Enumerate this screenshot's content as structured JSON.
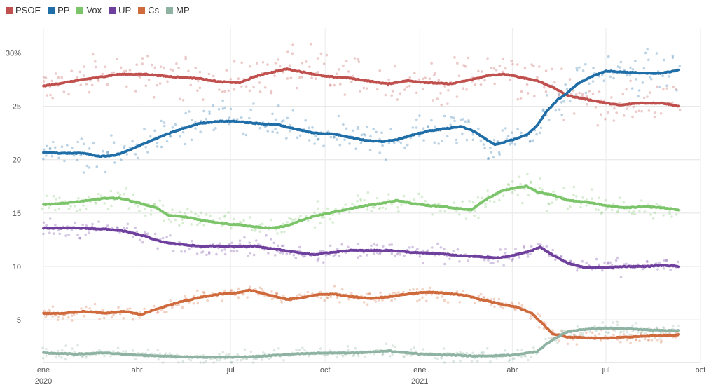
{
  "chart_data": {
    "type": "line",
    "title": "",
    "xlabel": "",
    "ylabel": "",
    "x_range": [
      "2020-01-01",
      "2021-10-01"
    ],
    "ylim": [
      1,
      32
    ],
    "grid": true,
    "legend_position": "top-left",
    "y_ticks": [
      {
        "value": 30,
        "label": "30%"
      },
      {
        "value": 25,
        "label": "25"
      },
      {
        "value": 20,
        "label": "20"
      },
      {
        "value": 15,
        "label": "15"
      },
      {
        "value": 10,
        "label": "10"
      },
      {
        "value": 5,
        "label": "5"
      }
    ],
    "x_ticks": [
      {
        "date": "2020-01-01",
        "label": "ene",
        "year": "2020"
      },
      {
        "date": "2020-04-01",
        "label": "abr",
        "year": ""
      },
      {
        "date": "2020-07-01",
        "label": "jul",
        "year": ""
      },
      {
        "date": "2020-10-01",
        "label": "oct",
        "year": ""
      },
      {
        "date": "2021-01-01",
        "label": "ene",
        "year": "2021"
      },
      {
        "date": "2021-04-01",
        "label": "abr",
        "year": ""
      },
      {
        "date": "2021-07-01",
        "label": "jul",
        "year": ""
      },
      {
        "date": "2021-10-01",
        "label": "oct",
        "year": ""
      }
    ],
    "series": [
      {
        "name": "PSOE",
        "color": "#c0504d",
        "points": [
          [
            "2020-01-01",
            26.9
          ],
          [
            "2020-01-20",
            27.2
          ],
          [
            "2020-02-15",
            27.6
          ],
          [
            "2020-03-15",
            28.0
          ],
          [
            "2020-04-10",
            28.0
          ],
          [
            "2020-05-01",
            27.8
          ],
          [
            "2020-06-01",
            27.6
          ],
          [
            "2020-06-20",
            27.3
          ],
          [
            "2020-07-10",
            27.2
          ],
          [
            "2020-07-25",
            27.8
          ],
          [
            "2020-08-15",
            28.3
          ],
          [
            "2020-08-25",
            28.5
          ],
          [
            "2020-09-15",
            28.1
          ],
          [
            "2020-10-01",
            27.8
          ],
          [
            "2020-10-20",
            27.7
          ],
          [
            "2020-11-10",
            27.4
          ],
          [
            "2020-12-01",
            27.1
          ],
          [
            "2020-12-20",
            27.4
          ],
          [
            "2021-01-10",
            27.2
          ],
          [
            "2021-02-01",
            27.1
          ],
          [
            "2021-02-20",
            27.5
          ],
          [
            "2021-03-10",
            27.9
          ],
          [
            "2021-03-25",
            28.0
          ],
          [
            "2021-04-10",
            27.7
          ],
          [
            "2021-04-25",
            27.4
          ],
          [
            "2021-05-10",
            26.8
          ],
          [
            "2021-05-25",
            26.0
          ],
          [
            "2021-06-15",
            25.6
          ],
          [
            "2021-07-01",
            25.3
          ],
          [
            "2021-07-15",
            25.1
          ],
          [
            "2021-08-01",
            25.3
          ],
          [
            "2021-08-25",
            25.3
          ],
          [
            "2021-09-10",
            25.0
          ]
        ]
      },
      {
        "name": "PP",
        "color": "#1f6ea8",
        "points": [
          [
            "2020-01-01",
            20.7
          ],
          [
            "2020-01-20",
            20.6
          ],
          [
            "2020-02-10",
            20.6
          ],
          [
            "2020-02-25",
            20.3
          ],
          [
            "2020-03-10",
            20.4
          ],
          [
            "2020-03-25",
            20.9
          ],
          [
            "2020-04-10",
            21.6
          ],
          [
            "2020-04-25",
            22.2
          ],
          [
            "2020-05-15",
            22.9
          ],
          [
            "2020-06-01",
            23.4
          ],
          [
            "2020-06-20",
            23.6
          ],
          [
            "2020-07-05",
            23.6
          ],
          [
            "2020-07-25",
            23.4
          ],
          [
            "2020-08-15",
            23.3
          ],
          [
            "2020-09-01",
            22.9
          ],
          [
            "2020-09-20",
            22.5
          ],
          [
            "2020-10-10",
            22.4
          ],
          [
            "2020-10-25",
            22.1
          ],
          [
            "2020-11-10",
            21.8
          ],
          [
            "2020-11-25",
            21.7
          ],
          [
            "2020-12-10",
            21.9
          ],
          [
            "2020-12-25",
            22.3
          ],
          [
            "2021-01-10",
            22.7
          ],
          [
            "2021-01-25",
            22.9
          ],
          [
            "2021-02-10",
            23.1
          ],
          [
            "2021-02-20",
            22.8
          ],
          [
            "2021-03-05",
            22.0
          ],
          [
            "2021-03-15",
            21.4
          ],
          [
            "2021-03-30",
            21.8
          ],
          [
            "2021-04-15",
            22.3
          ],
          [
            "2021-04-25",
            23.2
          ],
          [
            "2021-05-05",
            24.6
          ],
          [
            "2021-05-15",
            25.6
          ],
          [
            "2021-05-25",
            26.3
          ],
          [
            "2021-06-05",
            27.2
          ],
          [
            "2021-06-20",
            27.9
          ],
          [
            "2021-07-01",
            28.3
          ],
          [
            "2021-07-20",
            28.2
          ],
          [
            "2021-08-10",
            28.1
          ],
          [
            "2021-08-25",
            28.1
          ],
          [
            "2021-09-10",
            28.4
          ]
        ]
      },
      {
        "name": "Vox",
        "color": "#7bc46a",
        "points": [
          [
            "2020-01-01",
            15.8
          ],
          [
            "2020-01-20",
            15.9
          ],
          [
            "2020-02-15",
            16.2
          ],
          [
            "2020-03-01",
            16.4
          ],
          [
            "2020-03-15",
            16.4
          ],
          [
            "2020-04-01",
            16.0
          ],
          [
            "2020-04-20",
            15.5
          ],
          [
            "2020-05-01",
            14.8
          ],
          [
            "2020-05-20",
            14.6
          ],
          [
            "2020-06-10",
            14.2
          ],
          [
            "2020-06-25",
            14.0
          ],
          [
            "2020-07-10",
            13.9
          ],
          [
            "2020-07-25",
            13.7
          ],
          [
            "2020-08-10",
            13.6
          ],
          [
            "2020-08-25",
            13.8
          ],
          [
            "2020-09-10",
            14.4
          ],
          [
            "2020-09-25",
            14.8
          ],
          [
            "2020-10-10",
            15.1
          ],
          [
            "2020-10-25",
            15.4
          ],
          [
            "2020-11-10",
            15.7
          ],
          [
            "2020-11-25",
            15.9
          ],
          [
            "2020-12-10",
            16.2
          ],
          [
            "2020-12-25",
            15.9
          ],
          [
            "2021-01-10",
            15.7
          ],
          [
            "2021-01-25",
            15.6
          ],
          [
            "2021-02-10",
            15.4
          ],
          [
            "2021-02-20",
            15.3
          ],
          [
            "2021-03-05",
            16.2
          ],
          [
            "2021-03-20",
            17.0
          ],
          [
            "2021-04-05",
            17.4
          ],
          [
            "2021-04-15",
            17.5
          ],
          [
            "2021-04-25",
            17.0
          ],
          [
            "2021-05-10",
            16.7
          ],
          [
            "2021-05-25",
            16.2
          ],
          [
            "2021-06-15",
            16.0
          ],
          [
            "2021-07-01",
            15.7
          ],
          [
            "2021-07-20",
            15.5
          ],
          [
            "2021-08-10",
            15.6
          ],
          [
            "2021-08-25",
            15.5
          ],
          [
            "2021-09-10",
            15.3
          ]
        ]
      },
      {
        "name": "UP",
        "color": "#6f3f9e",
        "points": [
          [
            "2020-01-01",
            13.6
          ],
          [
            "2020-02-01",
            13.6
          ],
          [
            "2020-03-01",
            13.5
          ],
          [
            "2020-03-20",
            13.3
          ],
          [
            "2020-04-10",
            12.8
          ],
          [
            "2020-04-25",
            12.3
          ],
          [
            "2020-05-10",
            12.1
          ],
          [
            "2020-06-01",
            11.9
          ],
          [
            "2020-07-01",
            11.9
          ],
          [
            "2020-07-25",
            11.9
          ],
          [
            "2020-08-15",
            11.6
          ],
          [
            "2020-09-05",
            11.3
          ],
          [
            "2020-09-20",
            11.1
          ],
          [
            "2020-10-05",
            11.3
          ],
          [
            "2020-10-25",
            11.5
          ],
          [
            "2020-11-15",
            11.5
          ],
          [
            "2020-12-05",
            11.5
          ],
          [
            "2020-12-25",
            11.3
          ],
          [
            "2021-01-20",
            11.2
          ],
          [
            "2021-02-10",
            11.0
          ],
          [
            "2021-03-01",
            10.9
          ],
          [
            "2021-03-20",
            10.8
          ],
          [
            "2021-04-05",
            11.1
          ],
          [
            "2021-04-20",
            11.5
          ],
          [
            "2021-04-28",
            11.8
          ],
          [
            "2021-05-10",
            11.1
          ],
          [
            "2021-05-25",
            10.3
          ],
          [
            "2021-06-10",
            9.9
          ],
          [
            "2021-07-01",
            9.9
          ],
          [
            "2021-07-20",
            10.0
          ],
          [
            "2021-08-10",
            10.0
          ],
          [
            "2021-08-25",
            10.1
          ],
          [
            "2021-09-10",
            10.0
          ]
        ]
      },
      {
        "name": "Cs",
        "color": "#cf6a3d",
        "points": [
          [
            "2020-01-01",
            5.6
          ],
          [
            "2020-01-20",
            5.6
          ],
          [
            "2020-02-10",
            5.8
          ],
          [
            "2020-03-01",
            5.6
          ],
          [
            "2020-03-20",
            5.8
          ],
          [
            "2020-04-05",
            5.5
          ],
          [
            "2020-04-20",
            6.0
          ],
          [
            "2020-05-10",
            6.6
          ],
          [
            "2020-06-01",
            7.1
          ],
          [
            "2020-06-20",
            7.4
          ],
          [
            "2020-07-05",
            7.5
          ],
          [
            "2020-07-20",
            7.8
          ],
          [
            "2020-08-05",
            7.4
          ],
          [
            "2020-08-25",
            6.9
          ],
          [
            "2020-09-10",
            7.1
          ],
          [
            "2020-09-25",
            7.4
          ],
          [
            "2020-10-10",
            7.4
          ],
          [
            "2020-10-25",
            7.2
          ],
          [
            "2020-11-15",
            7.0
          ],
          [
            "2020-12-05",
            7.2
          ],
          [
            "2020-12-25",
            7.5
          ],
          [
            "2021-01-10",
            7.6
          ],
          [
            "2021-01-25",
            7.5
          ],
          [
            "2021-02-15",
            7.3
          ],
          [
            "2021-03-01",
            6.9
          ],
          [
            "2021-03-20",
            6.5
          ],
          [
            "2021-04-05",
            6.2
          ],
          [
            "2021-04-20",
            5.6
          ],
          [
            "2021-05-01",
            4.6
          ],
          [
            "2021-05-10",
            3.7
          ],
          [
            "2021-05-25",
            3.4
          ],
          [
            "2021-06-15",
            3.3
          ],
          [
            "2021-07-05",
            3.3
          ],
          [
            "2021-07-25",
            3.4
          ],
          [
            "2021-08-15",
            3.5
          ],
          [
            "2021-09-01",
            3.5
          ],
          [
            "2021-09-10",
            3.6
          ]
        ]
      },
      {
        "name": "MP",
        "color": "#8fb3a3",
        "points": [
          [
            "2020-01-01",
            1.9
          ],
          [
            "2020-02-01",
            1.8
          ],
          [
            "2020-03-01",
            1.9
          ],
          [
            "2020-04-01",
            1.7
          ],
          [
            "2020-05-01",
            1.6
          ],
          [
            "2020-06-01",
            1.5
          ],
          [
            "2020-07-01",
            1.5
          ],
          [
            "2020-08-01",
            1.6
          ],
          [
            "2020-09-01",
            1.8
          ],
          [
            "2020-10-01",
            1.9
          ],
          [
            "2020-11-01",
            1.9
          ],
          [
            "2020-12-01",
            2.1
          ],
          [
            "2021-01-01",
            1.8
          ],
          [
            "2021-02-01",
            1.7
          ],
          [
            "2021-03-01",
            1.6
          ],
          [
            "2021-04-01",
            1.7
          ],
          [
            "2021-04-25",
            2.0
          ],
          [
            "2021-05-05",
            2.8
          ],
          [
            "2021-05-15",
            3.4
          ],
          [
            "2021-05-25",
            3.9
          ],
          [
            "2021-06-10",
            4.1
          ],
          [
            "2021-06-25",
            4.2
          ],
          [
            "2021-07-15",
            4.2
          ],
          [
            "2021-08-01",
            4.1
          ],
          [
            "2021-08-25",
            4.0
          ],
          [
            "2021-09-10",
            4.0
          ]
        ]
      }
    ]
  }
}
